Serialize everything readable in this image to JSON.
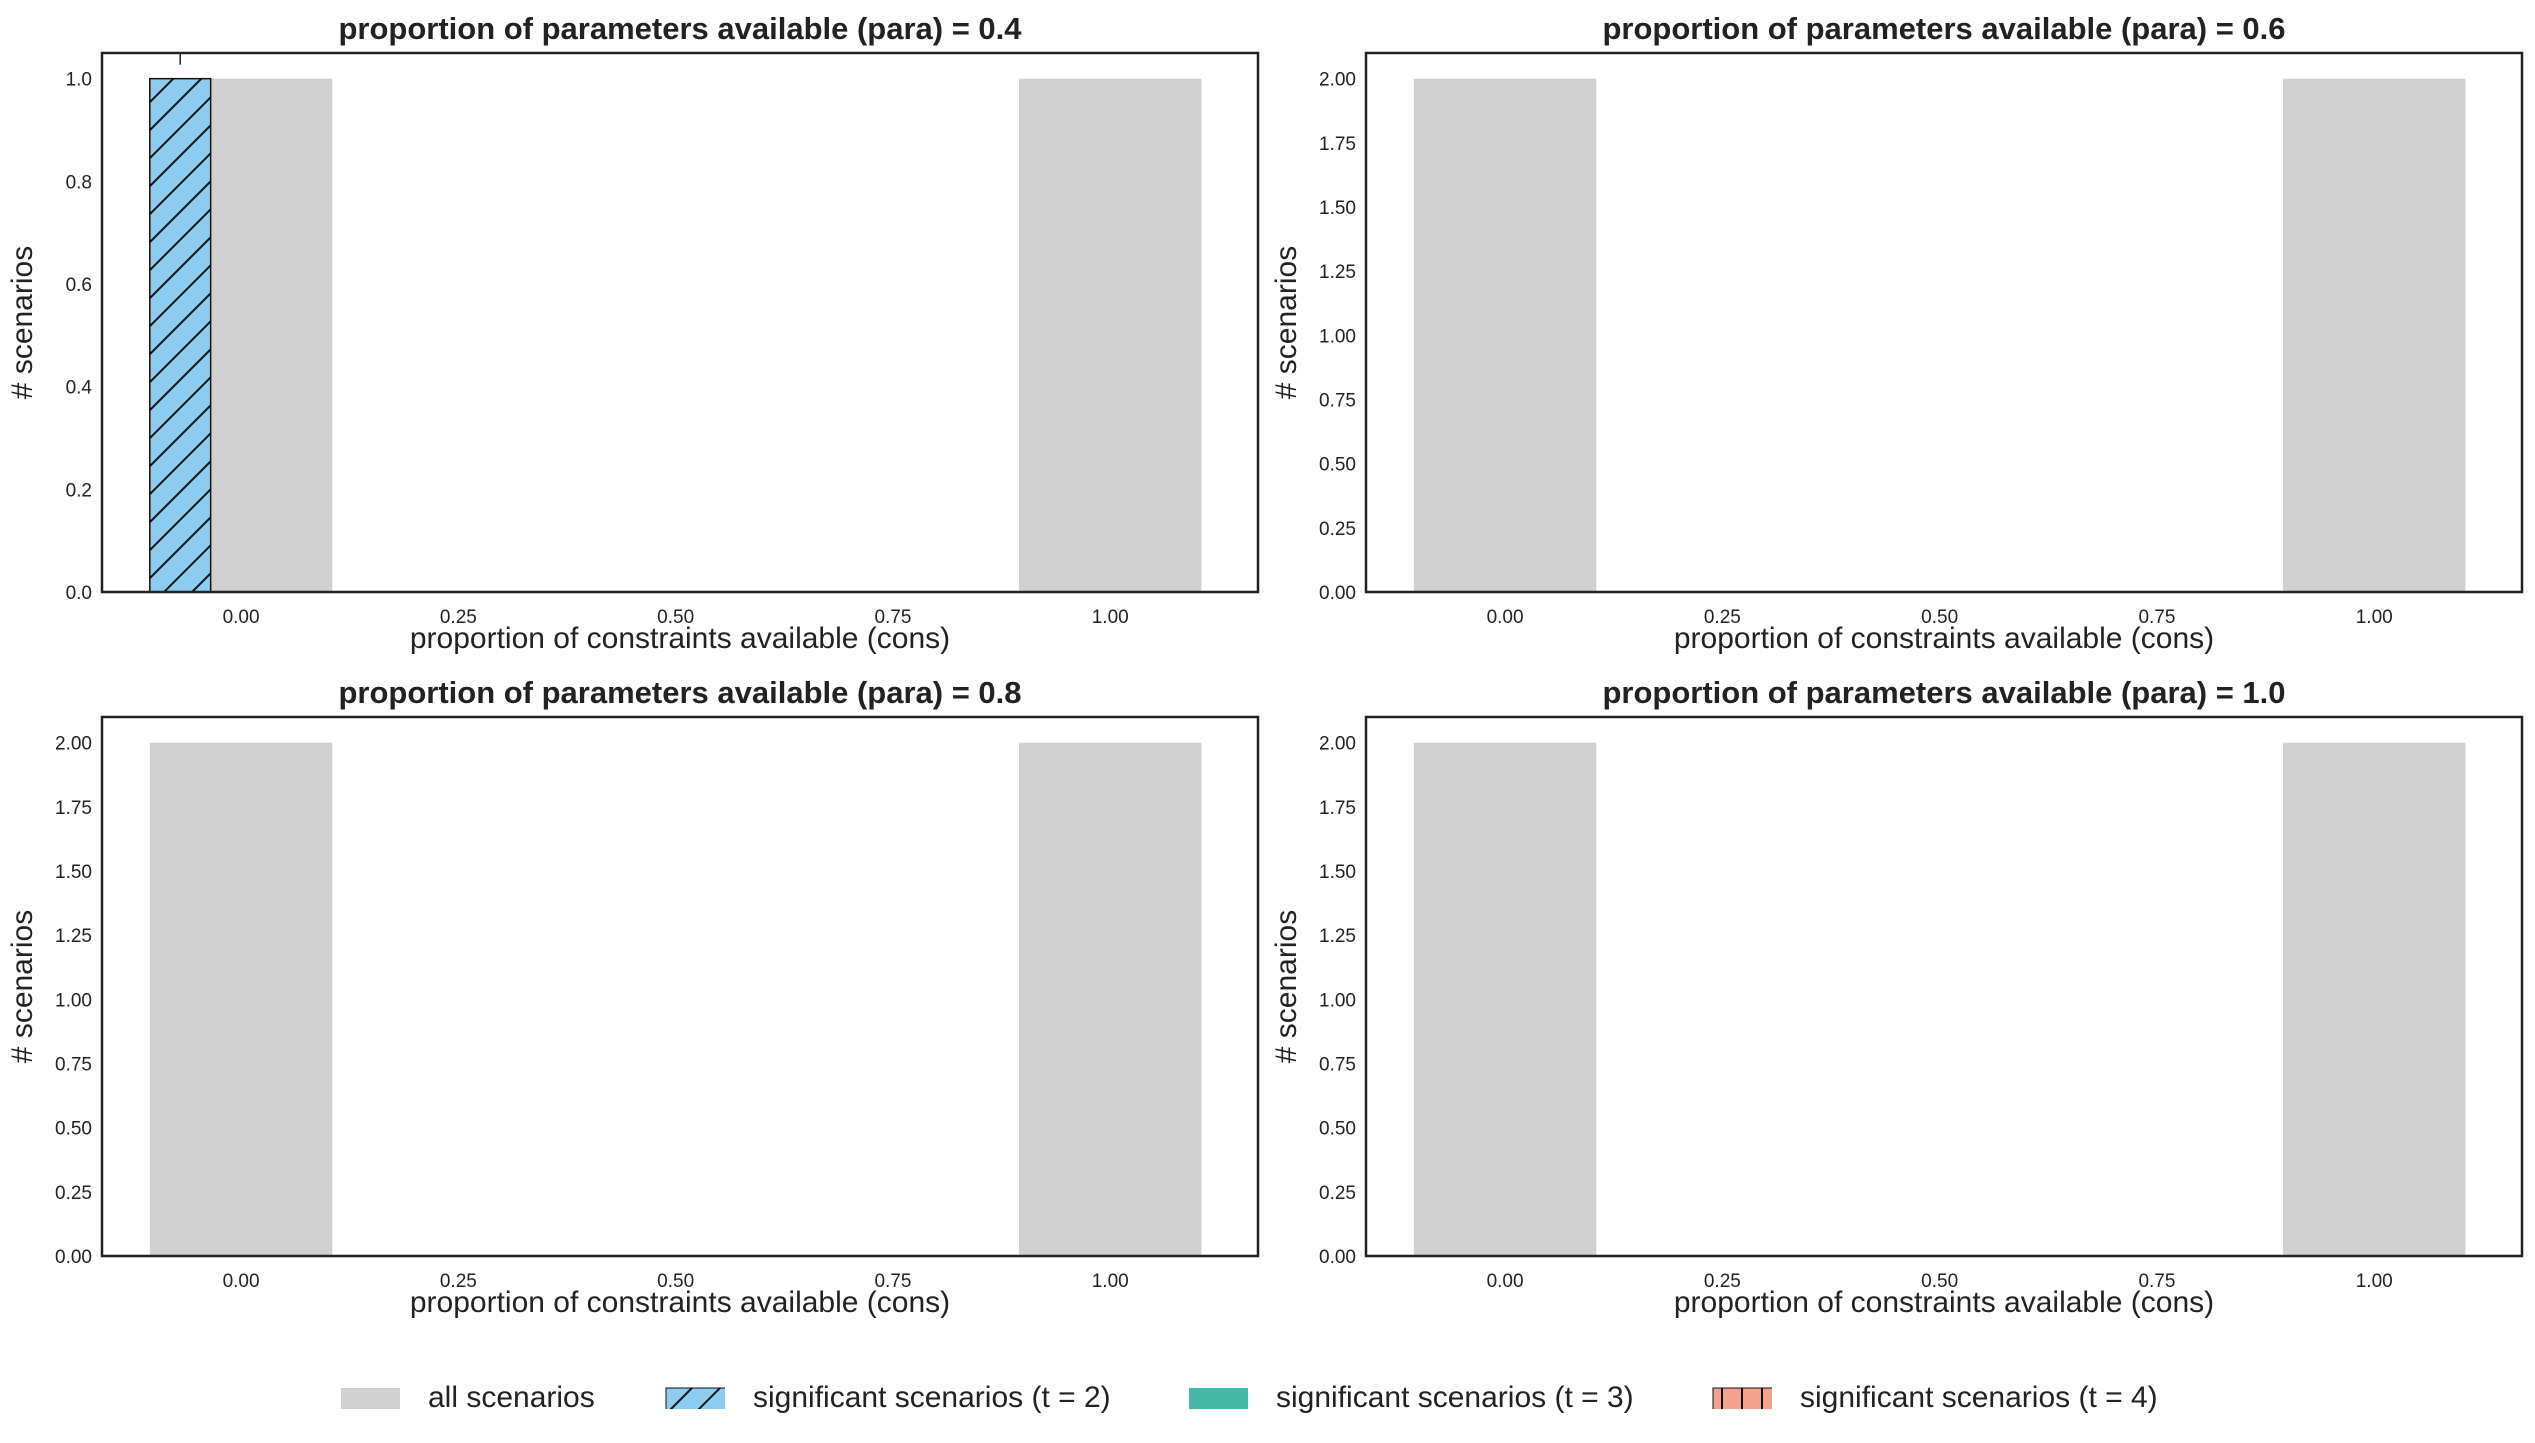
{
  "colors": {
    "all": "#d0d0d0",
    "t2": "#8ecbf0",
    "t3": "#46b8a6",
    "t4": "#f4a18d",
    "axis": "#222222",
    "text": "#222222"
  },
  "legend": [
    {
      "key": "all",
      "label": "all scenarios",
      "hatch": "none",
      "color": "#d0d0d0"
    },
    {
      "key": "t2",
      "label": "significant scenarios (t = 2)",
      "hatch": "diagonal",
      "color": "#8ecbf0"
    },
    {
      "key": "t3",
      "label": "significant scenarios (t = 3)",
      "hatch": "none",
      "color": "#46b8a6"
    },
    {
      "key": "t4",
      "label": "significant scenarios (t = 4)",
      "hatch": "vertical",
      "color": "#f4a18d"
    }
  ],
  "chart_data": [
    {
      "type": "bar",
      "title": "proportion of parameters available (para) = 0.4",
      "xlabel": "proportion of constraints available (cons)",
      "ylabel": "# scenarios",
      "xlim": [
        -0.16,
        1.17
      ],
      "ylim": [
        0,
        1.05
      ],
      "xticks": [
        "0.00",
        "0.25",
        "0.50",
        "0.75",
        "1.00"
      ],
      "yticks": [
        "0.0",
        "0.2",
        "0.4",
        "0.6",
        "0.8",
        "1.0"
      ],
      "grid": false,
      "series": [
        {
          "name": "all scenarios",
          "style": "all",
          "x": [
            0.0,
            1.0
          ],
          "values": [
            1,
            1
          ],
          "width": 0.21
        },
        {
          "name": "significant scenarios (t = 2)",
          "style": "t2",
          "x": [
            -0.07
          ],
          "values": [
            1
          ],
          "width": 0.07
        }
      ]
    },
    {
      "type": "bar",
      "title": "proportion of parameters available (para) = 0.6",
      "xlabel": "proportion of constraints available (cons)",
      "ylabel": "# scenarios",
      "xlim": [
        -0.16,
        1.17
      ],
      "ylim": [
        0,
        2.1
      ],
      "xticks": [
        "0.00",
        "0.25",
        "0.50",
        "0.75",
        "1.00"
      ],
      "yticks": [
        "0.00",
        "0.25",
        "0.50",
        "0.75",
        "1.00",
        "1.25",
        "1.50",
        "1.75",
        "2.00"
      ],
      "grid": false,
      "series": [
        {
          "name": "all scenarios",
          "style": "all",
          "x": [
            0.0,
            1.0
          ],
          "values": [
            2,
            2
          ],
          "width": 0.21
        }
      ]
    },
    {
      "type": "bar",
      "title": "proportion of parameters available (para) = 0.8",
      "xlabel": "proportion of constraints available (cons)",
      "ylabel": "# scenarios",
      "xlim": [
        -0.16,
        1.17
      ],
      "ylim": [
        0,
        2.1
      ],
      "xticks": [
        "0.00",
        "0.25",
        "0.50",
        "0.75",
        "1.00"
      ],
      "yticks": [
        "0.00",
        "0.25",
        "0.50",
        "0.75",
        "1.00",
        "1.25",
        "1.50",
        "1.75",
        "2.00"
      ],
      "grid": false,
      "series": [
        {
          "name": "all scenarios",
          "style": "all",
          "x": [
            0.0,
            1.0
          ],
          "values": [
            2,
            2
          ],
          "width": 0.21
        }
      ]
    },
    {
      "type": "bar",
      "title": "proportion of parameters available (para) = 1.0",
      "xlabel": "proportion of constraints available (cons)",
      "ylabel": "# scenarios",
      "xlim": [
        -0.16,
        1.17
      ],
      "ylim": [
        0,
        2.1
      ],
      "xticks": [
        "0.00",
        "0.25",
        "0.50",
        "0.75",
        "1.00"
      ],
      "yticks": [
        "0.00",
        "0.25",
        "0.50",
        "0.75",
        "1.00",
        "1.25",
        "1.50",
        "1.75",
        "2.00"
      ],
      "grid": false,
      "series": [
        {
          "name": "all scenarios",
          "style": "all",
          "x": [
            0.0,
            1.0
          ],
          "values": [
            2,
            2
          ],
          "width": 0.21
        }
      ]
    }
  ]
}
